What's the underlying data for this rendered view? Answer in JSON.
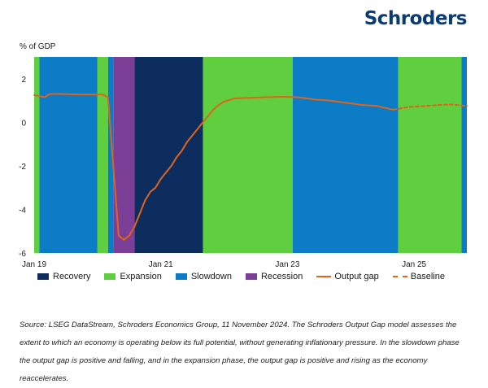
{
  "brand": {
    "logo_text": "Schroders",
    "logo_color": "#0b3b73"
  },
  "chart_data": {
    "type": "line",
    "ylabel": "% of GDP",
    "ylim": [
      -6,
      3
    ],
    "yticks": [
      2,
      0,
      -2,
      -4,
      -6
    ],
    "xlim": [
      "2019-01",
      "2025-11"
    ],
    "xtick_labels": [
      "Jan 19",
      "Jan 21",
      "Jan 23",
      "Jan 25"
    ],
    "xtick_values": [
      "2019-01",
      "2021-01",
      "2023-01",
      "2025-01"
    ],
    "grid": false,
    "legend_position": "bottom",
    "phases": [
      {
        "phase": "Expansion",
        "start": "2019-01",
        "end": "2019-02"
      },
      {
        "phase": "Slowdown",
        "start": "2019-02",
        "end": "2020-01"
      },
      {
        "phase": "Expansion",
        "start": "2020-01",
        "end": "2020-03"
      },
      {
        "phase": "Slowdown",
        "start": "2020-03",
        "end": "2020-04"
      },
      {
        "phase": "Recession",
        "start": "2020-04",
        "end": "2020-08"
      },
      {
        "phase": "Recovery",
        "start": "2020-08",
        "end": "2021-09"
      },
      {
        "phase": "Expansion",
        "start": "2021-09",
        "end": "2023-02"
      },
      {
        "phase": "Slowdown",
        "start": "2023-02",
        "end": "2024-10"
      },
      {
        "phase": "Expansion",
        "start": "2024-10",
        "end": "2025-10"
      },
      {
        "phase": "Slowdown",
        "start": "2025-10",
        "end": "2025-11"
      }
    ],
    "phase_colors": {
      "Recovery": "#0d2d5e",
      "Expansion": "#5fcf3f",
      "Slowdown": "#0c7cc7",
      "Recession": "#7b3f97"
    },
    "series": [
      {
        "name": "Output gap",
        "color": "#e0641b",
        "style": "solid",
        "points": [
          [
            "2019-01",
            1.25
          ],
          [
            "2019-03",
            1.15
          ],
          [
            "2019-04",
            1.3
          ],
          [
            "2019-06",
            1.3
          ],
          [
            "2019-09",
            1.28
          ],
          [
            "2019-12",
            1.27
          ],
          [
            "2020-02",
            1.27
          ],
          [
            "2020-03",
            1.15
          ],
          [
            "2020-04",
            -2.0
          ],
          [
            "2020-05",
            -5.2
          ],
          [
            "2020-06",
            -5.4
          ],
          [
            "2020-07",
            -5.2
          ],
          [
            "2020-08",
            -4.8
          ],
          [
            "2020-09",
            -4.2
          ],
          [
            "2020-10",
            -3.6
          ],
          [
            "2020-11",
            -3.2
          ],
          [
            "2020-12",
            -3.0
          ],
          [
            "2021-01",
            -2.6
          ],
          [
            "2021-02",
            -2.3
          ],
          [
            "2021-03",
            -2.0
          ],
          [
            "2021-04",
            -1.6
          ],
          [
            "2021-05",
            -1.3
          ],
          [
            "2021-06",
            -0.9
          ],
          [
            "2021-07",
            -0.6
          ],
          [
            "2021-08",
            -0.3
          ],
          [
            "2021-09",
            0.0
          ],
          [
            "2021-10",
            0.3
          ],
          [
            "2021-11",
            0.6
          ],
          [
            "2021-12",
            0.8
          ],
          [
            "2022-01",
            0.95
          ],
          [
            "2022-03",
            1.1
          ],
          [
            "2022-06",
            1.12
          ],
          [
            "2022-09",
            1.15
          ],
          [
            "2022-12",
            1.17
          ],
          [
            "2023-03",
            1.15
          ],
          [
            "2023-06",
            1.05
          ],
          [
            "2023-09",
            1.0
          ],
          [
            "2023-12",
            0.9
          ],
          [
            "2024-03",
            0.8
          ],
          [
            "2024-06",
            0.75
          ],
          [
            "2024-09",
            0.58
          ]
        ]
      },
      {
        "name": "Baseline",
        "color": "#e0641b",
        "style": "dashed",
        "points": [
          [
            "2024-09",
            0.58
          ],
          [
            "2024-12",
            0.7
          ],
          [
            "2025-03",
            0.75
          ],
          [
            "2025-06",
            0.8
          ],
          [
            "2025-08",
            0.82
          ],
          [
            "2025-11",
            0.75
          ]
        ]
      }
    ]
  },
  "legend": [
    {
      "label": "Recovery",
      "kind": "box",
      "color": "#0d2d5e"
    },
    {
      "label": "Expansion",
      "kind": "box",
      "color": "#5fcf3f"
    },
    {
      "label": "Slowdown",
      "kind": "box",
      "color": "#0c7cc7"
    },
    {
      "label": "Recession",
      "kind": "box",
      "color": "#7b3f97"
    },
    {
      "label": "Output gap",
      "kind": "line",
      "color": "#e0641b"
    },
    {
      "label": "Baseline",
      "kind": "dash",
      "color": "#e0641b"
    }
  ],
  "source_text": "Source: LSEG DataStream, Schroders Economics Group, 11 November 2024. The Schroders Output Gap model assesses the extent to which an economy is operating below its full potential, without generating inflationary pressure. In the slowdown phase the output gap is positive and falling, and in the expansion phase, the output gap is positive and rising as the economy reaccelerates."
}
